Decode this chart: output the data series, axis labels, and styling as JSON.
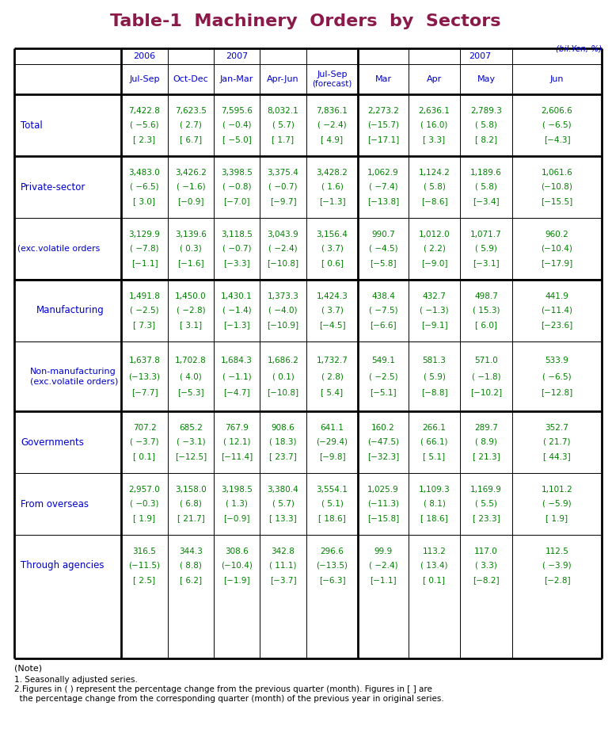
{
  "title": "Table-1  Machinery  Orders  by  Sectors",
  "unit_label": "(bil.Yen, %)",
  "title_color": "#8B1A4A",
  "header_color": "#0000CD",
  "data_color": "#008000",
  "label_color": "#0000CD",
  "bg_color": "#FFFFFF",
  "year_row": [
    "2006",
    "",
    "2007",
    "",
    "",
    "2007",
    "",
    "",
    ""
  ],
  "period_row": [
    "Jul-Sep",
    "Oct-Dec",
    "Jan-Mar",
    "Apr-Jun",
    "Jul-Sep\n(forecast)",
    "Mar",
    "Apr",
    "May",
    "Jun"
  ],
  "row_labels": [
    "Total",
    "Private-sector",
    "(exc.volatile orders",
    "Manufacturing",
    "Non-manufacturing\n(exc.volatile orders)",
    "Governments",
    "From overseas",
    "Through agencies"
  ],
  "cell_data": [
    [
      [
        "7,422.8",
        "( −5.6)",
        "[ 2.3]"
      ],
      [
        "7,623.5",
        "( 2.7)",
        "[ 6.7]"
      ],
      [
        "7,595.6",
        "( −0.4)",
        "[ −5.0]"
      ],
      [
        "8,032.1",
        "( 5.7)",
        "[ 1.7]"
      ],
      [
        "7,836.1",
        "( −2.4)",
        "[ 4.9]"
      ],
      [
        "2,273.2",
        "(−15.7)",
        "[−17.1]"
      ],
      [
        "2,636.1",
        "( 16.0)",
        "[ 3.3]"
      ],
      [
        "2,789.3",
        "( 5.8)",
        "[ 8.2]"
      ],
      [
        "2,606.6",
        "( −6.5)",
        "[−4.3]"
      ]
    ],
    [
      [
        "3,483.0",
        "( −6.5)",
        "[ 3.0]"
      ],
      [
        "3,426.2",
        "( −1.6)",
        "[−0.9]"
      ],
      [
        "3,398.5",
        "( −0.8)",
        "[−7.0]"
      ],
      [
        "3,375.4",
        "( −0.7)",
        "[−9.7]"
      ],
      [
        "3,428.2",
        "( 1.6)",
        "[−1.3]"
      ],
      [
        "1,062.9",
        "( −7.4)",
        "[−13.8]"
      ],
      [
        "1,124.2",
        "( 5.8)",
        "[−8.6]"
      ],
      [
        "1,189.6",
        "( 5.8)",
        "[−3.4]"
      ],
      [
        "1,061.6",
        "(−10.8)",
        "[−15.5]"
      ]
    ],
    [
      [
        "3,129.9",
        "( −7.8)",
        "[−1.1]"
      ],
      [
        "3,139.6",
        "( 0.3)",
        "[−1.6]"
      ],
      [
        "3,118.5",
        "( −0.7)",
        "[−3.3]"
      ],
      [
        "3,043.9",
        "( −2.4)",
        "[−10.8]"
      ],
      [
        "3,156.4",
        "( 3.7)",
        "[ 0.6]"
      ],
      [
        "990.7",
        "( −4.5)",
        "[−5.8]"
      ],
      [
        "1,012.0",
        "( 2.2)",
        "[−9.0]"
      ],
      [
        "1,071.7",
        "( 5.9)",
        "[−3.1]"
      ],
      [
        "960.2",
        "(−10.4)",
        "[−17.9]"
      ]
    ],
    [
      [
        "1,491.8",
        "( −2.5)",
        "[ 7.3]"
      ],
      [
        "1,450.0",
        "( −2.8)",
        "[ 3.1]"
      ],
      [
        "1,430.1",
        "( −1.4)",
        "[−1.3]"
      ],
      [
        "1,373.3",
        "( −4.0)",
        "[−10.9]"
      ],
      [
        "1,424.3",
        "( 3.7)",
        "[−4.5]"
      ],
      [
        "438.4",
        "( −7.5)",
        "[−6.6]"
      ],
      [
        "432.7",
        "( −1.3)",
        "[−9.1]"
      ],
      [
        "498.7",
        "( 15.3)",
        "[ 6.0]"
      ],
      [
        "441.9",
        "(−11.4)",
        "[−23.6]"
      ]
    ],
    [
      [
        "1,637.8",
        "(−13.3)",
        "[−7.7]"
      ],
      [
        "1,702.8",
        "( 4.0)",
        "[−5.3]"
      ],
      [
        "1,684.3",
        "( −1.1)",
        "[−4.7]"
      ],
      [
        "1,686.2",
        "( 0.1)",
        "[−10.8]"
      ],
      [
        "1,732.7",
        "( 2.8)",
        "[ 5.4]"
      ],
      [
        "549.1",
        "( −2.5)",
        "[−5.1]"
      ],
      [
        "581.3",
        "( 5.9)",
        "[−8.8]"
      ],
      [
        "571.0",
        "( −1.8)",
        "[−10.2]"
      ],
      [
        "533.9",
        "( −6.5)",
        "[−12.8]"
      ]
    ],
    [
      [
        "707.2",
        "( −3.7)",
        "[ 0.1]"
      ],
      [
        "685.2",
        "( −3.1)",
        "[−12.5]"
      ],
      [
        "767.9",
        "( 12.1)",
        "[−11.4]"
      ],
      [
        "908.6",
        "( 18.3)",
        "[ 23.7]"
      ],
      [
        "641.1",
        "(−29.4)",
        "[−9.8]"
      ],
      [
        "160.2",
        "(−47.5)",
        "[−32.3]"
      ],
      [
        "266.1",
        "( 66.1)",
        "[ 5.1]"
      ],
      [
        "289.7",
        "( 8.9)",
        "[ 21.3]"
      ],
      [
        "352.7",
        "( 21.7)",
        "[ 44.3]"
      ]
    ],
    [
      [
        "2,957.0",
        "( −0.3)",
        "[ 1.9]"
      ],
      [
        "3,158.0",
        "( 6.8)",
        "[ 21.7]"
      ],
      [
        "3,198.5",
        "( 1.3)",
        "[−0.9]"
      ],
      [
        "3,380.4",
        "( 5.7)",
        "[ 13.3]"
      ],
      [
        "3,554.1",
        "( 5.1)",
        "[ 18.6]"
      ],
      [
        "1,025.9",
        "(−11.3)",
        "[−15.8]"
      ],
      [
        "1,109.3",
        "( 8.1)",
        "[ 18.6]"
      ],
      [
        "1,169.9",
        "( 5.5)",
        "[ 23.3]"
      ],
      [
        "1,101.2",
        "( −5.9)",
        "[ 1.9]"
      ]
    ],
    [
      [
        "316.5",
        "(−11.5)",
        "[ 2.5]"
      ],
      [
        "344.3",
        "( 8.8)",
        "[ 6.2]"
      ],
      [
        "308.6",
        "(−10.4)",
        "[−1.9]"
      ],
      [
        "342.8",
        "( 11.1)",
        "[−3.7]"
      ],
      [
        "296.6",
        "(−13.5)",
        "[−6.3]"
      ],
      [
        "99.9",
        "( −2.4)",
        "[−1.1]"
      ],
      [
        "113.2",
        "( 13.4)",
        "[ 0.1]"
      ],
      [
        "117.0",
        "( 3.3)",
        "[−8.2]"
      ],
      [
        "112.5",
        "( −3.9)",
        "[−2.8]"
      ]
    ]
  ],
  "notes": [
    "(Note)",
    "1. Seasonally adjusted series.",
    "2.Figures in ( ) represent the percentage change from the previous quarter (month). Figures in [ ] are",
    "  the percentage change from the corresponding quarter (month) of the previous year in original series."
  ]
}
